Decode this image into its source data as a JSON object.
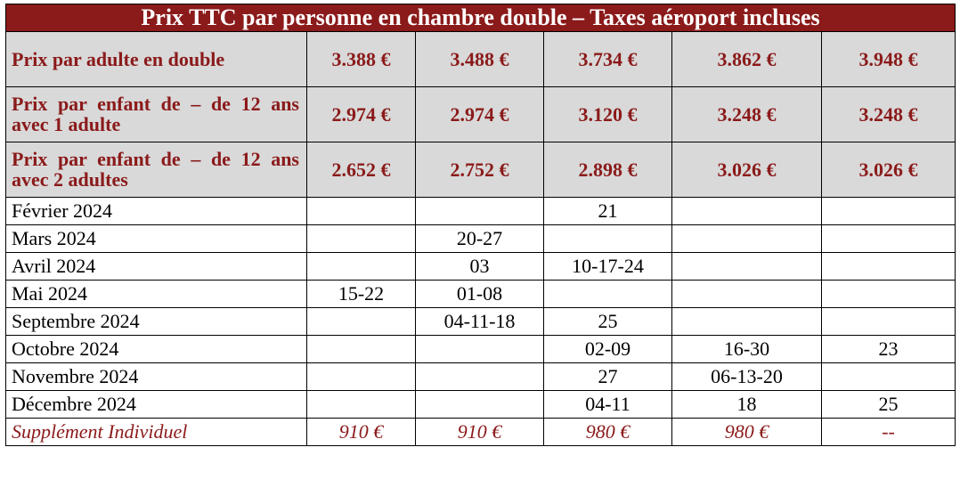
{
  "title": "Prix TTC par personne en chambre double – Taxes aéroport incluses",
  "price_rows": [
    {
      "label": "Prix par adulte en double",
      "values": [
        "3.388 €",
        "3.488 €",
        "3.734 €",
        "3.862 €",
        "3.948 €"
      ]
    },
    {
      "label": "Prix par enfant de – de 12 ans avec 1 adulte",
      "values": [
        "2.974 €",
        "2.974 €",
        "3.120 €",
        "3.248 €",
        "3.248 €"
      ]
    },
    {
      "label": "Prix par enfant de – de 12 ans avec 2 adultes",
      "values": [
        "2.652 €",
        "2.752 €",
        "2.898 €",
        "3.026 €",
        "3.026 €"
      ]
    }
  ],
  "date_rows": [
    {
      "month": "Février 2024",
      "dates": [
        "",
        "",
        "21",
        "",
        ""
      ]
    },
    {
      "month": "Mars 2024",
      "dates": [
        "",
        "20-27",
        "",
        "",
        ""
      ]
    },
    {
      "month": "Avril 2024",
      "dates": [
        "",
        "03",
        "10-17-24",
        "",
        ""
      ]
    },
    {
      "month": "Mai 2024",
      "dates": [
        "15-22",
        "01-08",
        "",
        "",
        ""
      ]
    },
    {
      "month": "Septembre 2024",
      "dates": [
        "",
        "04-11-18",
        "25",
        "",
        ""
      ]
    },
    {
      "month": "Octobre 2024",
      "dates": [
        "",
        "",
        "02-09",
        "16-30",
        "23"
      ]
    },
    {
      "month": "Novembre 2024",
      "dates": [
        "",
        "",
        "27",
        "06-13-20",
        ""
      ]
    },
    {
      "month": "Décembre 2024",
      "dates": [
        "",
        "",
        "04-11",
        "18",
        "25"
      ]
    }
  ],
  "supplement": {
    "label": "Supplément Individuel",
    "values": [
      "910 €",
      "910 €",
      "980 €",
      "980 €",
      "--"
    ]
  },
  "colors": {
    "header_bg": "#8b1a1a",
    "header_text": "#ffffff",
    "price_bg": "#d9d9d9",
    "accent_text": "#8b1a1a"
  }
}
